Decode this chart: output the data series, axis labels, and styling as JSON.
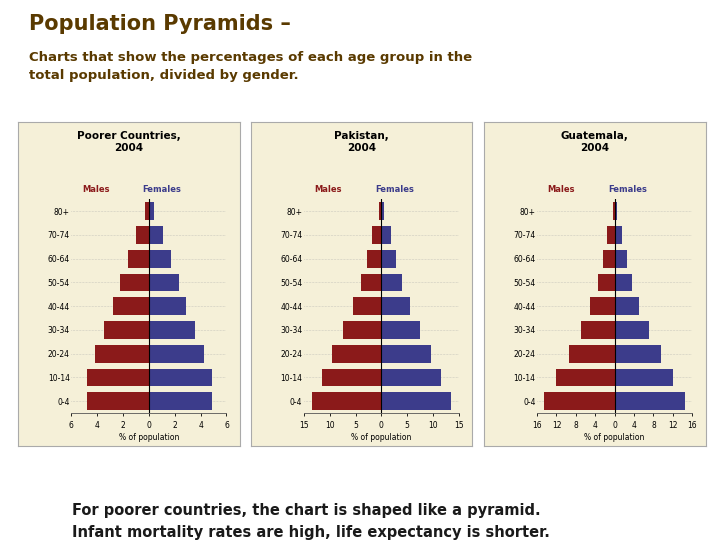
{
  "title": "Population Pyramids –",
  "subtitle": "Charts that show the percentages of each age group in the\ntotal population, divided by gender.",
  "footer": "For poorer countries, the chart is shaped like a pyramid.\nInfant mortality rates are high, life expectancy is shorter.",
  "title_color": "#5a3a00",
  "subtitle_color": "#5a3a00",
  "footer_color": "#1a1a1a",
  "bg_color": "#ffffff",
  "panel_bg": "#f5f0d8",
  "male_color": "#8b1a1a",
  "female_color": "#3c3c8b",
  "age_groups": [
    "0-4",
    "10-14",
    "20-24",
    "30-34",
    "40-44",
    "50-54",
    "60-64",
    "70-74",
    "80+"
  ],
  "charts": [
    {
      "title": "Poorer Countries,\n2004",
      "xlim": 6,
      "xticks_neg": [
        6,
        4,
        2
      ],
      "xticks_pos": [
        2,
        4,
        6
      ],
      "males": [
        4.8,
        4.8,
        4.2,
        3.5,
        2.8,
        2.2,
        1.6,
        1.0,
        0.3
      ],
      "females": [
        4.9,
        4.9,
        4.3,
        3.6,
        2.9,
        2.3,
        1.7,
        1.1,
        0.4
      ]
    },
    {
      "title": "Pakistan,\n2004",
      "xlim": 15,
      "xticks_neg": [
        15,
        10,
        5
      ],
      "xticks_pos": [
        5,
        10,
        15
      ],
      "males": [
        13.5,
        11.5,
        9.5,
        7.5,
        5.5,
        4.0,
        2.8,
        1.8,
        0.5
      ],
      "females": [
        13.5,
        11.5,
        9.5,
        7.5,
        5.5,
        4.0,
        2.8,
        1.8,
        0.5
      ]
    },
    {
      "title": "Guatemala,\n2004",
      "xlim": 16,
      "xticks_neg": [
        16,
        12,
        8,
        4
      ],
      "xticks_pos": [
        4,
        8,
        12,
        16
      ],
      "males": [
        14.5,
        12.0,
        9.5,
        7.0,
        5.0,
        3.5,
        2.5,
        1.5,
        0.4
      ],
      "females": [
        14.5,
        12.0,
        9.5,
        7.0,
        5.0,
        3.5,
        2.5,
        1.5,
        0.4
      ]
    }
  ]
}
